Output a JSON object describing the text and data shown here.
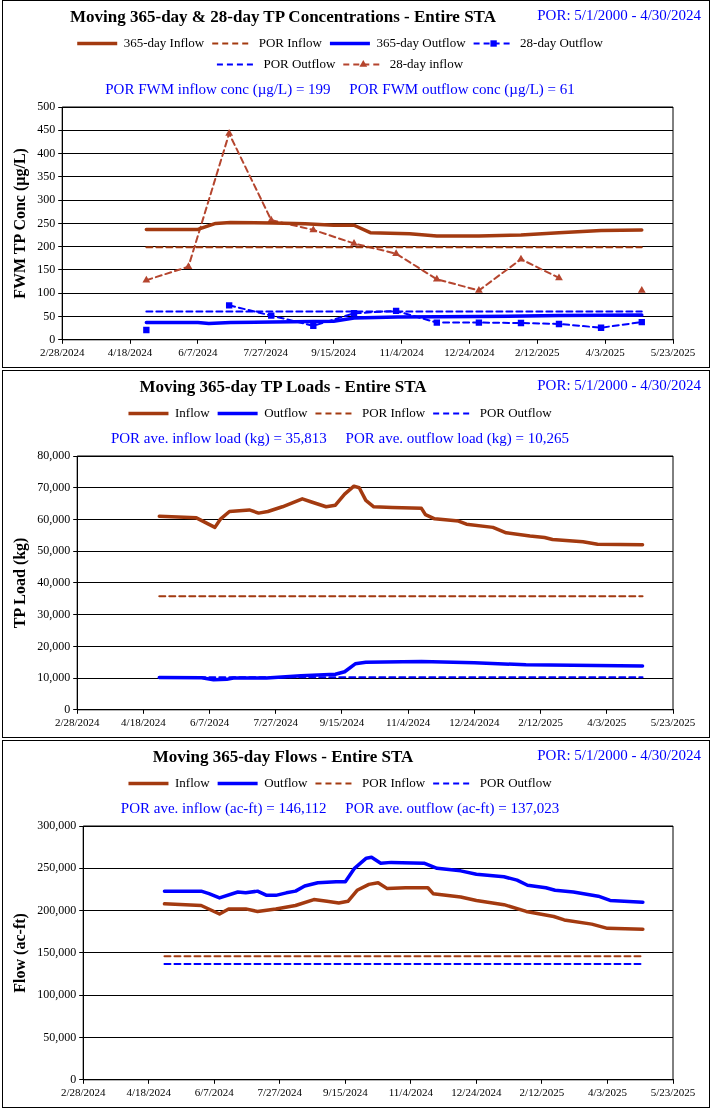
{
  "chart_data": [
    {
      "type": "line",
      "title": "Moving 365-day & 28-day TP Concentrations - Entire STA",
      "subtitle": "POR: 5/1/2000 - 4/30/2024",
      "ylabel": "FWM TP Conc (µg/L)",
      "annotations": [
        "POR FWM inflow conc (µg/L) = 199",
        "POR FWM outflow conc (µg/L) = 61"
      ],
      "legend": "top",
      "grid": "y",
      "xlim": [
        "2024-02-28",
        "2025-05-23"
      ],
      "xticks": [
        {
          "value": "2024-02-28",
          "label": "2/28/2024"
        },
        {
          "value": "2024-04-18",
          "label": "4/18/2024"
        },
        {
          "value": "2024-06-07",
          "label": "6/7/2024"
        },
        {
          "value": "2024-07-27",
          "label": "7/27/2024"
        },
        {
          "value": "2024-09-15",
          "label": "9/15/2024"
        },
        {
          "value": "2024-11-04",
          "label": "11/4/2024"
        },
        {
          "value": "2024-12-24",
          "label": "12/24/2024"
        },
        {
          "value": "2025-02-12",
          "label": "2/12/2025"
        },
        {
          "value": "2025-04-03",
          "label": "4/3/2025"
        },
        {
          "value": "2025-05-23",
          "label": "5/23/2025"
        }
      ],
      "ylim": [
        0,
        500
      ],
      "yticks": [
        0,
        50,
        100,
        150,
        200,
        250,
        300,
        350,
        400,
        450,
        500
      ],
      "series": [
        {
          "name": "365-day Inflow",
          "color": "#a33a10",
          "line_style": "solid",
          "marker": "none",
          "x": [
            "2024-04-30",
            "2024-06-07",
            "2024-06-20",
            "2024-07-01",
            "2024-08-01",
            "2024-08-25",
            "2024-09-15",
            "2024-09-30",
            "2024-10-12",
            "2024-11-10",
            "2024-11-30",
            "2024-12-31",
            "2025-01-31",
            "2025-02-28",
            "2025-03-31",
            "2025-04-30"
          ],
          "values": [
            237,
            237,
            250,
            252,
            251,
            249,
            246,
            246,
            230,
            228,
            223,
            223,
            225,
            230,
            235,
            236
          ]
        },
        {
          "name": "POR Inflow",
          "color": "#a33a10",
          "line_style": "dashed",
          "marker": "none",
          "x": [
            "2024-04-30",
            "2025-04-30"
          ],
          "values": [
            199,
            199
          ]
        },
        {
          "name": "365-day Outflow",
          "color": "#0000ff",
          "line_style": "solid",
          "marker": "none",
          "x": [
            "2024-04-30",
            "2024-06-07",
            "2024-06-15",
            "2024-07-01",
            "2024-08-01",
            "2024-09-15",
            "2024-09-30",
            "2024-11-01",
            "2024-12-31",
            "2025-02-28",
            "2025-04-30"
          ],
          "values": [
            37,
            37,
            35,
            37,
            38,
            40,
            47,
            49,
            50,
            52,
            53
          ]
        },
        {
          "name": "28-day Outflow",
          "color": "#0000ff",
          "line_style": "dashed",
          "marker": "square",
          "x": [
            "2024-04-30",
            "2024-05-31",
            "2024-06-30",
            "2024-07-31",
            "2024-08-31",
            "2024-09-30",
            "2024-10-31",
            "2024-11-30",
            "2024-12-31",
            "2025-01-31",
            "2025-02-28",
            "2025-03-31",
            "2025-04-30"
          ],
          "values": [
            21,
            null,
            74,
            52,
            30,
            57,
            62,
            37,
            37,
            36,
            34,
            26,
            38
          ]
        },
        {
          "name": "POR Outflow",
          "color": "#0000ff",
          "line_style": "dashed",
          "marker": "none",
          "x": [
            "2024-04-30",
            "2025-04-30"
          ],
          "values": [
            61,
            61
          ]
        },
        {
          "name": "28-day inflow",
          "color": "#b5452e",
          "line_style": "dashed",
          "marker": "triangle",
          "x": [
            "2024-04-30",
            "2024-05-31",
            "2024-06-30",
            "2024-07-31",
            "2024-08-31",
            "2024-09-30",
            "2024-10-31",
            "2024-11-30",
            "2024-12-31",
            "2025-01-31",
            "2025-02-28",
            "2025-03-31",
            "2025-04-30"
          ],
          "values": [
            128,
            157,
            443,
            257,
            236,
            207,
            185,
            130,
            106,
            173,
            133,
            null,
            106
          ]
        }
      ]
    },
    {
      "type": "line",
      "title": "Moving 365-day TP Loads - Entire STA",
      "subtitle": "POR: 5/1/2000 - 4/30/2024",
      "ylabel": "TP Load (kg)",
      "annotations": [
        "POR ave. inflow load (kg) = 35,813",
        "POR ave. outflow load (kg) = 10,265"
      ],
      "legend": "top",
      "grid": "y",
      "xlim": [
        "2024-02-28",
        "2025-05-23"
      ],
      "xticks": [
        {
          "value": "2024-02-28",
          "label": "2/28/2024"
        },
        {
          "value": "2024-04-18",
          "label": "4/18/2024"
        },
        {
          "value": "2024-06-07",
          "label": "6/7/2024"
        },
        {
          "value": "2024-07-27",
          "label": "7/27/2024"
        },
        {
          "value": "2024-09-15",
          "label": "9/15/2024"
        },
        {
          "value": "2024-11-04",
          "label": "11/4/2024"
        },
        {
          "value": "2024-12-24",
          "label": "12/24/2024"
        },
        {
          "value": "2025-02-12",
          "label": "2/12/2025"
        },
        {
          "value": "2025-04-03",
          "label": "4/3/2025"
        },
        {
          "value": "2025-05-23",
          "label": "5/23/2025"
        }
      ],
      "ylim": [
        0,
        80000
      ],
      "yticks": [
        0,
        {
          "value": 10000,
          "label": "10,000"
        },
        {
          "value": 20000,
          "label": "20,000"
        },
        {
          "value": 30000,
          "label": "30,000"
        },
        {
          "value": 40000,
          "label": "40,000"
        },
        {
          "value": 50000,
          "label": "50,000"
        },
        {
          "value": 60000,
          "label": "60,000"
        },
        {
          "value": 70000,
          "label": "70,000"
        },
        {
          "value": 80000,
          "label": "80,000"
        }
      ],
      "series": [
        {
          "name": "Inflow",
          "color": "#a33a10",
          "line_style": "solid",
          "marker": "none",
          "x": [
            "2024-04-30",
            "2024-05-28",
            "2024-06-11",
            "2024-06-15",
            "2024-06-22",
            "2024-07-07",
            "2024-07-14",
            "2024-07-21",
            "2024-08-01",
            "2024-08-16",
            "2024-08-23",
            "2024-09-03",
            "2024-09-10",
            "2024-09-17",
            "2024-09-24",
            "2024-09-28",
            "2024-10-03",
            "2024-10-09",
            "2024-10-23",
            "2024-11-14",
            "2024-11-17",
            "2024-11-24",
            "2024-12-12",
            "2024-12-18",
            "2025-01-07",
            "2025-01-17",
            "2025-02-04",
            "2025-02-15",
            "2025-02-21",
            "2025-03-16",
            "2025-03-27",
            "2025-04-30"
          ],
          "values": [
            61000,
            60500,
            57500,
            60000,
            62500,
            63000,
            62000,
            62500,
            64000,
            66500,
            65500,
            64000,
            64500,
            68000,
            70500,
            70000,
            66000,
            64000,
            63800,
            63500,
            61500,
            60200,
            59500,
            58500,
            57500,
            55800,
            54800,
            54300,
            53700,
            53000,
            52200,
            52000
          ]
        },
        {
          "name": "Outflow",
          "color": "#0000ff",
          "line_style": "solid",
          "marker": "none",
          "x": [
            "2024-04-30",
            "2024-06-01",
            "2024-06-10",
            "2024-06-20",
            "2024-06-25",
            "2024-07-20",
            "2024-08-15",
            "2024-09-10",
            "2024-09-17",
            "2024-09-25",
            "2024-10-03",
            "2024-11-14",
            "2024-12-24",
            "2025-02-01",
            "2025-04-30"
          ],
          "values": [
            10200,
            10100,
            9500,
            9600,
            10000,
            10000,
            10700,
            11200,
            12000,
            14500,
            15000,
            15200,
            14800,
            14200,
            13800
          ]
        },
        {
          "name": "POR Inflow",
          "color": "#a33a10",
          "line_style": "dashed",
          "marker": "none",
          "x": [
            "2024-04-30",
            "2025-04-30"
          ],
          "values": [
            35813,
            35813
          ]
        },
        {
          "name": "POR Outflow",
          "color": "#0000ff",
          "line_style": "dashed",
          "marker": "none",
          "x": [
            "2024-04-30",
            "2025-04-30"
          ],
          "values": [
            10265,
            10265
          ]
        }
      ]
    },
    {
      "type": "line",
      "title": "Moving 365-day Flows - Entire STA",
      "subtitle": "POR: 5/1/2000 - 4/30/2024",
      "ylabel": "Flow (ac-ft)",
      "annotations": [
        "POR ave. inflow (ac-ft) = 146,112",
        "POR ave. outflow (ac-ft) = 137,023"
      ],
      "legend": "top",
      "grid": "y",
      "xlim": [
        "2024-02-28",
        "2025-05-23"
      ],
      "xticks": [
        {
          "value": "2024-02-28",
          "label": "2/28/2024"
        },
        {
          "value": "2024-04-18",
          "label": "4/18/2024"
        },
        {
          "value": "2024-06-07",
          "label": "6/7/2024"
        },
        {
          "value": "2024-07-27",
          "label": "7/27/2024"
        },
        {
          "value": "2024-09-15",
          "label": "9/15/2024"
        },
        {
          "value": "2024-11-04",
          "label": "11/4/2024"
        },
        {
          "value": "2024-12-24",
          "label": "12/24/2024"
        },
        {
          "value": "2025-02-12",
          "label": "2/12/2025"
        },
        {
          "value": "2025-04-03",
          "label": "4/3/2025"
        },
        {
          "value": "2025-05-23",
          "label": "5/23/2025"
        }
      ],
      "ylim": [
        0,
        300000
      ],
      "yticks": [
        0,
        {
          "value": 50000,
          "label": "50,000"
        },
        {
          "value": 100000,
          "label": "100,000"
        },
        {
          "value": 150000,
          "label": "150,000"
        },
        {
          "value": 200000,
          "label": "200,000"
        },
        {
          "value": 250000,
          "label": "250,000"
        },
        {
          "value": 300000,
          "label": "300,000"
        }
      ],
      "series": [
        {
          "name": "Inflow",
          "color": "#a33a10",
          "line_style": "solid",
          "marker": "none",
          "x": [
            "2024-04-30",
            "2024-05-28",
            "2024-06-11",
            "2024-06-18",
            "2024-07-01",
            "2024-07-10",
            "2024-07-24",
            "2024-08-08",
            "2024-08-22",
            "2024-09-01",
            "2024-09-10",
            "2024-09-17",
            "2024-09-24",
            "2024-10-03",
            "2024-10-10",
            "2024-10-17",
            "2024-10-31",
            "2024-11-17",
            "2024-11-21",
            "2024-12-12",
            "2024-12-24",
            "2025-01-14",
            "2025-01-31",
            "2025-02-21",
            "2025-03-01",
            "2025-03-22",
            "2025-04-03",
            "2025-04-30"
          ],
          "values": [
            208000,
            206000,
            196000,
            202000,
            202000,
            199000,
            202000,
            206000,
            213000,
            211000,
            209000,
            211000,
            224000,
            231000,
            233000,
            226000,
            227000,
            227000,
            220000,
            216000,
            212000,
            207000,
            199000,
            193000,
            189000,
            184000,
            179000,
            178000
          ]
        },
        {
          "name": "Outflow",
          "color": "#0000ff",
          "line_style": "solid",
          "marker": "none",
          "x": [
            "2024-04-30",
            "2024-05-28",
            "2024-06-03",
            "2024-06-11",
            "2024-06-25",
            "2024-07-01",
            "2024-07-10",
            "2024-07-17",
            "2024-07-24",
            "2024-08-01",
            "2024-08-08",
            "2024-08-15",
            "2024-08-25",
            "2024-09-08",
            "2024-09-15",
            "2024-09-22",
            "2024-10-01",
            "2024-10-05",
            "2024-10-12",
            "2024-10-20",
            "2024-11-14",
            "2024-11-24",
            "2024-12-12",
            "2024-12-24",
            "2025-01-14",
            "2025-01-24",
            "2025-02-01",
            "2025-02-15",
            "2025-02-22",
            "2025-03-08",
            "2025-03-27",
            "2025-04-05",
            "2025-04-30"
          ],
          "values": [
            223000,
            223000,
            220000,
            215000,
            222000,
            221000,
            223000,
            218000,
            218000,
            221000,
            223000,
            229000,
            233000,
            234000,
            234000,
            250000,
            262000,
            263000,
            256000,
            257000,
            256000,
            250000,
            247000,
            243000,
            240000,
            236000,
            230000,
            227000,
            224000,
            222000,
            217000,
            212000,
            210000
          ]
        },
        {
          "name": "POR Inflow",
          "color": "#a33a10",
          "line_style": "dashed",
          "marker": "none",
          "x": [
            "2024-04-30",
            "2025-04-30"
          ],
          "values": [
            146112,
            146112
          ]
        },
        {
          "name": "POR Outflow",
          "color": "#0000ff",
          "line_style": "dashed",
          "marker": "none",
          "x": [
            "2024-04-30",
            "2025-04-30"
          ],
          "values": [
            137023,
            137023
          ]
        }
      ]
    }
  ]
}
